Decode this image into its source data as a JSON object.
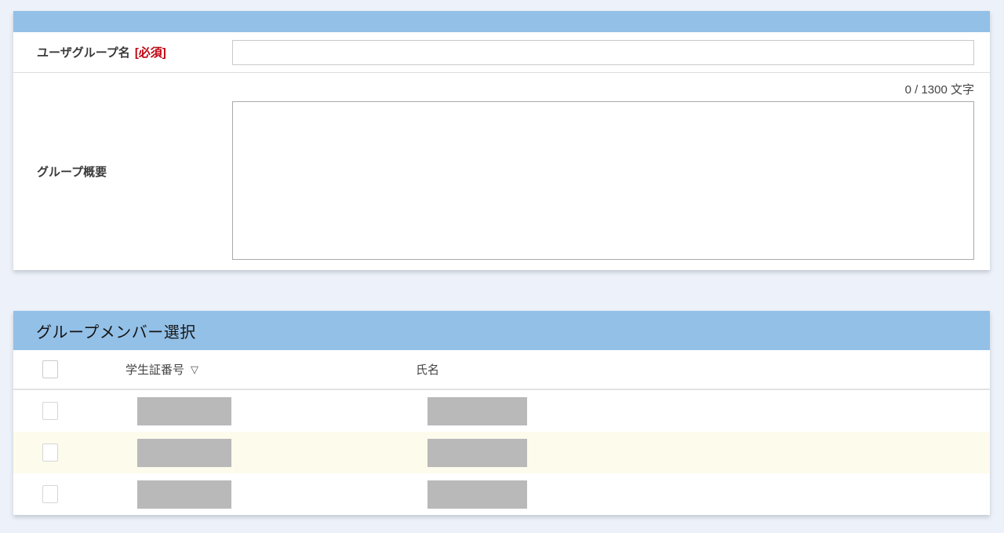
{
  "colors": {
    "page_background": "#edf1f9",
    "header_blue": "#93c0e7",
    "required_red": "#c00211",
    "row_highlight": "#fdfbec",
    "redaction_gray": "#b9b9b9"
  },
  "form": {
    "group_name": {
      "label": "ユーザグループ名",
      "required_tag": "[必須]",
      "value": "",
      "placeholder": ""
    },
    "group_desc": {
      "label": "グループ概要",
      "counter": "0 / 1300 文字",
      "value": "",
      "placeholder": ""
    }
  },
  "members": {
    "title": "グループメンバー選択",
    "columns": {
      "student_id": "学生証番号",
      "sort_icon": "▽",
      "name": "氏名"
    },
    "rows": [
      {
        "checked": false,
        "alt": false,
        "student_id_redacted": true,
        "name_redacted": true
      },
      {
        "checked": false,
        "alt": true,
        "student_id_redacted": true,
        "name_redacted": true
      },
      {
        "checked": false,
        "alt": false,
        "student_id_redacted": true,
        "name_redacted": true
      }
    ]
  }
}
